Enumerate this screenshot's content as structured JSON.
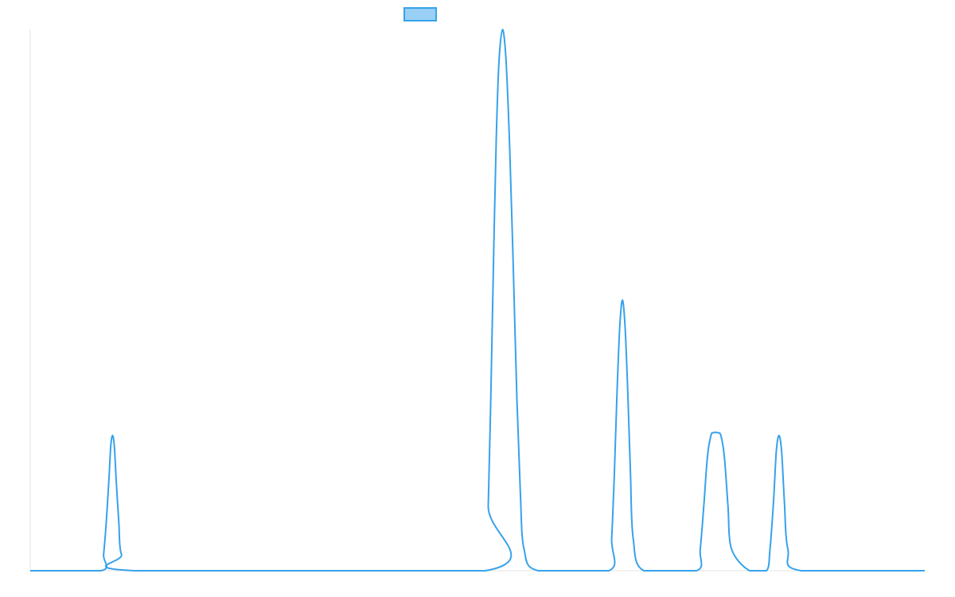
{
  "chart_data": {
    "type": "line",
    "title": "",
    "xlabel": "",
    "ylabel": "",
    "legend": {
      "placement": "top-center",
      "entries": [
        {
          "label": "",
          "fill": "#9ad0f5",
          "stroke": "#36a2eb"
        }
      ]
    },
    "grid": false,
    "xlim": [
      0,
      1
    ],
    "ylim": [
      0,
      1
    ],
    "series": [
      {
        "color": "#36a2eb",
        "points": [
          [
            0.0,
            0.0
          ],
          [
            0.079,
            0.0
          ],
          [
            0.082,
            0.03
          ],
          [
            0.085,
            0.09
          ],
          [
            0.088,
            0.17
          ],
          [
            0.09,
            0.23
          ],
          [
            0.092,
            0.25
          ],
          [
            0.094,
            0.23
          ],
          [
            0.096,
            0.17
          ],
          [
            0.099,
            0.09
          ],
          [
            0.102,
            0.03
          ],
          [
            0.117,
            0.0
          ],
          [
            0.509,
            0.0
          ],
          [
            0.512,
            0.12
          ],
          [
            0.515,
            0.33
          ],
          [
            0.518,
            0.58
          ],
          [
            0.521,
            0.8
          ],
          [
            0.524,
            0.94
          ],
          [
            0.528,
            1.0
          ],
          [
            0.532,
            0.94
          ],
          [
            0.536,
            0.78
          ],
          [
            0.54,
            0.56
          ],
          [
            0.544,
            0.32
          ],
          [
            0.548,
            0.14
          ],
          [
            0.552,
            0.04
          ],
          [
            0.568,
            0.0
          ],
          [
            0.647,
            0.0
          ],
          [
            0.65,
            0.06
          ],
          [
            0.653,
            0.18
          ],
          [
            0.656,
            0.33
          ],
          [
            0.659,
            0.45
          ],
          [
            0.662,
            0.5
          ],
          [
            0.665,
            0.45
          ],
          [
            0.668,
            0.33
          ],
          [
            0.671,
            0.18
          ],
          [
            0.674,
            0.06
          ],
          [
            0.686,
            0.0
          ],
          [
            0.745,
            0.0
          ],
          [
            0.749,
            0.04
          ],
          [
            0.753,
            0.12
          ],
          [
            0.757,
            0.21
          ],
          [
            0.761,
            0.25
          ],
          [
            0.764,
            0.255
          ],
          [
            0.768,
            0.255
          ],
          [
            0.772,
            0.25
          ],
          [
            0.776,
            0.21
          ],
          [
            0.78,
            0.12
          ],
          [
            0.784,
            0.04
          ],
          [
            0.804,
            0.0
          ],
          [
            0.823,
            0.0
          ],
          [
            0.827,
            0.04
          ],
          [
            0.831,
            0.13
          ],
          [
            0.834,
            0.22
          ],
          [
            0.837,
            0.25
          ],
          [
            0.84,
            0.22
          ],
          [
            0.843,
            0.13
          ],
          [
            0.847,
            0.04
          ],
          [
            0.862,
            0.0
          ],
          [
            1.0,
            0.0
          ]
        ]
      }
    ]
  }
}
